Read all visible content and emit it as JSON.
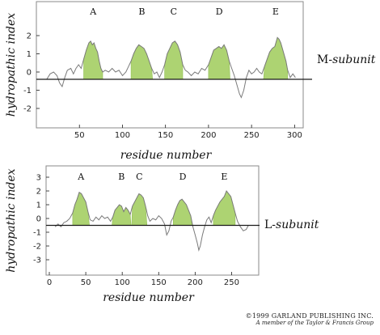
{
  "colors": {
    "fill": "#a9d16b",
    "fill_dark": "#8cbc4a",
    "line": "#7a7a7a",
    "axis": "#1a1a1a",
    "frame": "#8a8a8a"
  },
  "chart_data": [
    {
      "type": "line",
      "subunit_label": {
        "prefix": "M-",
        "name": "subunit"
      },
      "xlabel": "residue number",
      "ylabel": "hydropathic index",
      "xlim": [
        0,
        310
      ],
      "ylim": [
        -3,
        3
      ],
      "xticks": [
        50,
        100,
        150,
        200,
        250,
        300
      ],
      "yticks": [
        2,
        1,
        0,
        -1,
        -2
      ],
      "threshold": -0.4,
      "helices": [
        {
          "label": "A",
          "start": 55,
          "end": 77
        },
        {
          "label": "B",
          "start": 110,
          "end": 135
        },
        {
          "label": "C",
          "start": 149,
          "end": 170
        },
        {
          "label": "D",
          "start": 200,
          "end": 225
        },
        {
          "label": "E",
          "start": 264,
          "end": 292
        }
      ],
      "points": [
        [
          12,
          -0.4
        ],
        [
          16,
          -0.1
        ],
        [
          20,
          0.0
        ],
        [
          24,
          -0.2
        ],
        [
          27,
          -0.6
        ],
        [
          30,
          -0.8
        ],
        [
          33,
          -0.3
        ],
        [
          36,
          0.1
        ],
        [
          40,
          0.2
        ],
        [
          43,
          -0.1
        ],
        [
          46,
          0.2
        ],
        [
          49,
          0.4
        ],
        [
          52,
          0.2
        ],
        [
          55,
          0.7
        ],
        [
          58,
          1.2
        ],
        [
          61,
          1.6
        ],
        [
          63,
          1.7
        ],
        [
          65,
          1.5
        ],
        [
          67,
          1.6
        ],
        [
          69,
          1.3
        ],
        [
          71,
          1.1
        ],
        [
          73,
          0.6
        ],
        [
          75,
          0.2
        ],
        [
          77,
          0.0
        ],
        [
          80,
          0.1
        ],
        [
          84,
          0.0
        ],
        [
          88,
          0.2
        ],
        [
          92,
          0.0
        ],
        [
          96,
          0.1
        ],
        [
          100,
          -0.2
        ],
        [
          104,
          0.0
        ],
        [
          107,
          0.3
        ],
        [
          110,
          0.6
        ],
        [
          113,
          1.0
        ],
        [
          116,
          1.3
        ],
        [
          119,
          1.5
        ],
        [
          122,
          1.4
        ],
        [
          125,
          1.3
        ],
        [
          128,
          1.0
        ],
        [
          131,
          0.6
        ],
        [
          134,
          0.2
        ],
        [
          137,
          -0.1
        ],
        [
          140,
          0.0
        ],
        [
          143,
          -0.3
        ],
        [
          146,
          0.0
        ],
        [
          149,
          0.4
        ],
        [
          152,
          1.0
        ],
        [
          155,
          1.3
        ],
        [
          158,
          1.6
        ],
        [
          161,
          1.7
        ],
        [
          164,
          1.5
        ],
        [
          167,
          1.1
        ],
        [
          170,
          0.4
        ],
        [
          173,
          0.1
        ],
        [
          176,
          0.0
        ],
        [
          180,
          -0.2
        ],
        [
          184,
          0.0
        ],
        [
          188,
          -0.1
        ],
        [
          192,
          0.2
        ],
        [
          196,
          0.1
        ],
        [
          200,
          0.4
        ],
        [
          203,
          0.8
        ],
        [
          206,
          1.2
        ],
        [
          209,
          1.3
        ],
        [
          212,
          1.4
        ],
        [
          215,
          1.3
        ],
        [
          218,
          1.5
        ],
        [
          221,
          1.2
        ],
        [
          224,
          0.6
        ],
        [
          227,
          0.2
        ],
        [
          230,
          -0.2
        ],
        [
          233,
          -0.7
        ],
        [
          236,
          -1.2
        ],
        [
          238,
          -1.4
        ],
        [
          241,
          -1.0
        ],
        [
          244,
          -0.3
        ],
        [
          247,
          0.1
        ],
        [
          250,
          -0.1
        ],
        [
          253,
          0.0
        ],
        [
          256,
          0.2
        ],
        [
          259,
          0.0
        ],
        [
          262,
          -0.1
        ],
        [
          265,
          0.3
        ],
        [
          268,
          0.7
        ],
        [
          271,
          1.1
        ],
        [
          274,
          1.3
        ],
        [
          277,
          1.4
        ],
        [
          280,
          1.9
        ],
        [
          282,
          1.8
        ],
        [
          284,
          1.6
        ],
        [
          287,
          1.1
        ],
        [
          290,
          0.6
        ],
        [
          292,
          0.1
        ],
        [
          295,
          -0.3
        ],
        [
          298,
          -0.1
        ],
        [
          301,
          -0.3
        ]
      ]
    },
    {
      "type": "line",
      "subunit_label": {
        "prefix": "L-",
        "name": "subunit"
      },
      "xlabel": "residue number",
      "ylabel": "hydropathic index",
      "xlim": [
        0,
        285
      ],
      "ylim": [
        -3,
        3
      ],
      "xticks": [
        0,
        50,
        100,
        150,
        200,
        250
      ],
      "yticks": [
        3,
        2,
        1,
        0,
        -1,
        -2,
        -3
      ],
      "threshold": -0.5,
      "helices": [
        {
          "label": "A",
          "start": 32,
          "end": 55
        },
        {
          "label": "B",
          "start": 86,
          "end": 112
        },
        {
          "label": "C",
          "start": 113,
          "end": 134
        },
        {
          "label": "D",
          "start": 170,
          "end": 196
        },
        {
          "label": "E",
          "start": 225,
          "end": 255
        }
      ],
      "points": [
        [
          8,
          -0.6
        ],
        [
          12,
          -0.4
        ],
        [
          16,
          -0.6
        ],
        [
          20,
          -0.3
        ],
        [
          24,
          -0.2
        ],
        [
          28,
          0.0
        ],
        [
          32,
          0.4
        ],
        [
          35,
          1.0
        ],
        [
          38,
          1.4
        ],
        [
          41,
          1.9
        ],
        [
          44,
          1.8
        ],
        [
          47,
          1.5
        ],
        [
          50,
          1.2
        ],
        [
          53,
          0.5
        ],
        [
          56,
          -0.1
        ],
        [
          60,
          -0.2
        ],
        [
          64,
          0.1
        ],
        [
          68,
          -0.1
        ],
        [
          72,
          0.2
        ],
        [
          76,
          0.0
        ],
        [
          80,
          0.1
        ],
        [
          84,
          -0.2
        ],
        [
          87,
          0.1
        ],
        [
          90,
          0.6
        ],
        [
          93,
          0.8
        ],
        [
          96,
          1.0
        ],
        [
          99,
          0.9
        ],
        [
          102,
          0.5
        ],
        [
          105,
          0.8
        ],
        [
          108,
          0.6
        ],
        [
          111,
          0.3
        ],
        [
          114,
          0.9
        ],
        [
          117,
          1.2
        ],
        [
          120,
          1.5
        ],
        [
          123,
          1.8
        ],
        [
          126,
          1.7
        ],
        [
          129,
          1.5
        ],
        [
          132,
          0.9
        ],
        [
          135,
          0.2
        ],
        [
          138,
          -0.2
        ],
        [
          142,
          0.0
        ],
        [
          146,
          -0.1
        ],
        [
          150,
          0.2
        ],
        [
          154,
          0.0
        ],
        [
          158,
          -0.4
        ],
        [
          161,
          -1.2
        ],
        [
          164,
          -0.9
        ],
        [
          167,
          -0.2
        ],
        [
          170,
          0.1
        ],
        [
          173,
          0.6
        ],
        [
          176,
          1.0
        ],
        [
          179,
          1.3
        ],
        [
          182,
          1.4
        ],
        [
          185,
          1.2
        ],
        [
          188,
          1.0
        ],
        [
          191,
          0.6
        ],
        [
          194,
          0.2
        ],
        [
          197,
          -0.6
        ],
        [
          200,
          -1.2
        ],
        [
          203,
          -1.8
        ],
        [
          205,
          -2.3
        ],
        [
          207,
          -2.0
        ],
        [
          210,
          -1.2
        ],
        [
          213,
          -0.6
        ],
        [
          216,
          -0.1
        ],
        [
          219,
          0.1
        ],
        [
          222,
          -0.3
        ],
        [
          225,
          0.2
        ],
        [
          228,
          0.6
        ],
        [
          231,
          0.9
        ],
        [
          234,
          1.2
        ],
        [
          237,
          1.4
        ],
        [
          240,
          1.6
        ],
        [
          243,
          2.0
        ],
        [
          246,
          1.8
        ],
        [
          249,
          1.6
        ],
        [
          252,
          1.0
        ],
        [
          255,
          0.4
        ],
        [
          258,
          -0.2
        ],
        [
          262,
          -0.6
        ],
        [
          266,
          -0.9
        ],
        [
          270,
          -0.8
        ],
        [
          273,
          -0.5
        ]
      ]
    }
  ],
  "credit": {
    "line1": "©1999 GARLAND PUBLISHING INC.",
    "line2": "A member of the Taylor & Francis Group"
  }
}
